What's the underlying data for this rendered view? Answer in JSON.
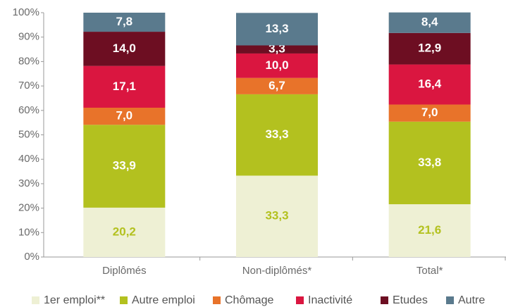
{
  "chart_data": {
    "type": "stacked-bar",
    "categories": [
      "Diplômés",
      "Non-diplômés*",
      "Total*"
    ],
    "series": [
      {
        "name": "1er emploi**",
        "color": "#eef0d4",
        "label_color": "#b3c11f",
        "values": [
          20.2,
          33.3,
          21.6
        ],
        "value_labels": [
          "20,2",
          "33,3",
          "21,6"
        ]
      },
      {
        "name": "Autre emploi",
        "color": "#b3c11f",
        "label_color": "#ffffff",
        "values": [
          33.9,
          33.3,
          33.8
        ],
        "value_labels": [
          "33,9",
          "33,3",
          "33,8"
        ]
      },
      {
        "name": "Chômage",
        "color": "#e8732a",
        "label_color": "#ffffff",
        "values": [
          7.0,
          6.7,
          7.0
        ],
        "value_labels": [
          "7,0",
          "6,7",
          "7,0"
        ]
      },
      {
        "name": "Inactivité",
        "color": "#da1640",
        "label_color": "#ffffff",
        "values": [
          17.1,
          10.0,
          16.4
        ],
        "value_labels": [
          "17,1",
          "10,0",
          "16,4"
        ]
      },
      {
        "name": "Etudes",
        "color": "#6d0e22",
        "label_color": "#ffffff",
        "values": [
          14.0,
          3.3,
          12.9
        ],
        "value_labels": [
          "14,0",
          "3,3",
          "12,9"
        ]
      },
      {
        "name": "Autre",
        "color": "#5a7a8d",
        "label_color": "#ffffff",
        "values": [
          7.8,
          13.3,
          8.4
        ],
        "value_labels": [
          "7,8",
          "13,3",
          "8,4"
        ]
      }
    ],
    "ylim": [
      0,
      100
    ],
    "yticks": [
      {
        "value": 0,
        "label": "0%"
      },
      {
        "value": 10,
        "label": "10%"
      },
      {
        "value": 20,
        "label": "20%"
      },
      {
        "value": 30,
        "label": "30%"
      },
      {
        "value": 40,
        "label": "40%"
      },
      {
        "value": 50,
        "label": "50%"
      },
      {
        "value": 60,
        "label": "60%"
      },
      {
        "value": 70,
        "label": "70%"
      },
      {
        "value": 80,
        "label": "80%"
      },
      {
        "value": 90,
        "label": "90%"
      },
      {
        "value": 100,
        "label": "100%"
      }
    ],
    "legend": "bottom"
  }
}
